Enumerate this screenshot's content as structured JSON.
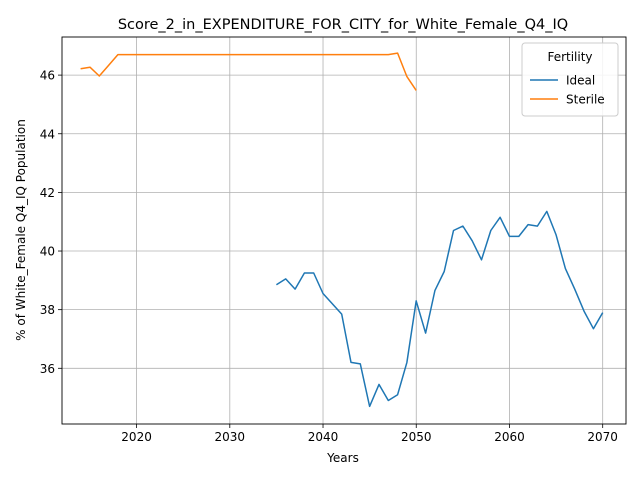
{
  "chart_data": {
    "type": "line",
    "title": "Score_2_in_EXPENDITURE_FOR_CITY_for_White_Female_Q4_IQ",
    "xlabel": "Years",
    "ylabel": "% of White_Female Q4_IQ Population",
    "xlim": [
      2012,
      2072.5
    ],
    "ylim": [
      34.1,
      47.3
    ],
    "xticks": [
      2020,
      2030,
      2040,
      2050,
      2060,
      2070
    ],
    "yticks": [
      36,
      38,
      40,
      42,
      44,
      46
    ],
    "grid": true,
    "legend": {
      "title": "Fertility",
      "placement": "top-right"
    },
    "series": [
      {
        "name": "Ideal",
        "color": "#1f77b4",
        "x": [
          2035,
          2036,
          2037,
          2038,
          2039,
          2040,
          2041,
          2042,
          2043,
          2044,
          2045,
          2046,
          2047,
          2048,
          2049,
          2050,
          2051,
          2052,
          2053,
          2054,
          2055,
          2056,
          2057,
          2058,
          2059,
          2060,
          2061,
          2062,
          2063,
          2064,
          2065,
          2066,
          2067,
          2068,
          2069,
          2070
        ],
        "y": [
          38.85,
          39.05,
          38.7,
          39.25,
          39.25,
          38.55,
          38.2,
          37.85,
          36.2,
          36.15,
          34.7,
          35.45,
          34.9,
          35.1,
          36.2,
          38.3,
          37.2,
          38.65,
          39.3,
          40.7,
          40.85,
          40.35,
          39.7,
          40.7,
          41.15,
          40.5,
          40.5,
          40.9,
          40.85,
          41.35,
          40.55,
          39.4,
          38.7,
          37.95,
          37.35,
          37.9
        ]
      },
      {
        "name": "Sterile",
        "color": "#ff7f0e",
        "x": [
          2014,
          2015,
          2016,
          2017,
          2018,
          2019,
          2020,
          2025,
          2030,
          2035,
          2040,
          2045,
          2046,
          2047,
          2048,
          2049,
          2050
        ],
        "y": [
          46.22,
          46.27,
          45.97,
          46.33,
          46.7,
          46.7,
          46.7,
          46.7,
          46.7,
          46.7,
          46.7,
          46.7,
          46.7,
          46.7,
          46.75,
          45.95,
          45.48
        ]
      }
    ]
  }
}
